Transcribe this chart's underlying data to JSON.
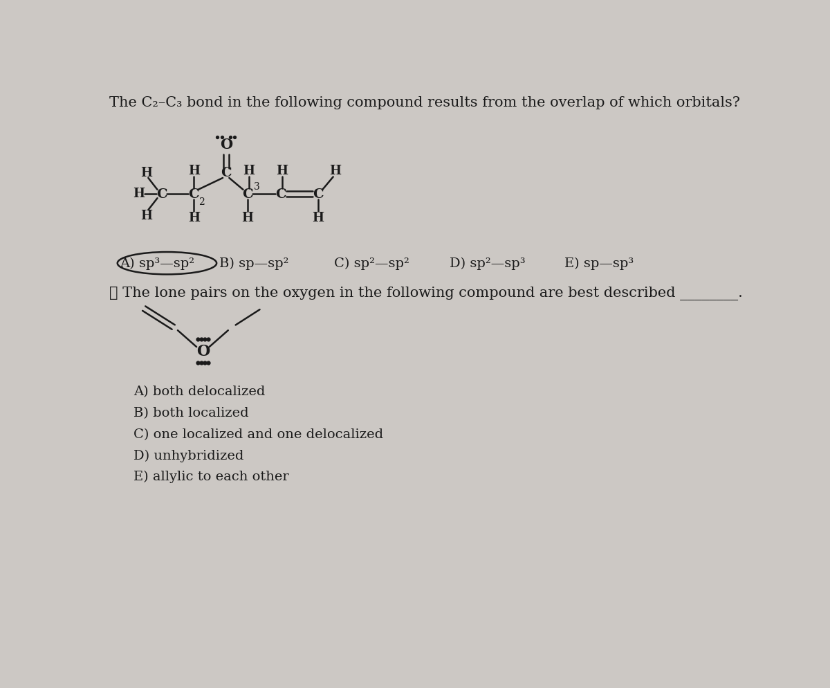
{
  "bg_color": "#ccc8c4",
  "text_color": "#1a1a1a",
  "title_q1": "The C₂–C₃ bond in the following compound results from the overlap of which orbitals?",
  "title_q2": "The lone pairs on the oxygen in the following compound are best described ________.",
  "q1_options": [
    {
      "label": "A) sp³—sp²",
      "circled": true
    },
    {
      "label": "B) sp—sp²",
      "circled": false
    },
    {
      "label": "C) sp²—sp²",
      "circled": false
    },
    {
      "label": "D) sp²—sp³",
      "circled": false
    },
    {
      "label": "E) sp—sp³",
      "circled": false
    }
  ],
  "q2_options": [
    "A) both delocalized",
    "B) both localized",
    "C) one localized and one delocalized",
    "D) unhybridized",
    "E) allylic to each other"
  ],
  "font_size_title": 15,
  "font_size_options": 14,
  "font_size_struct": 13,
  "font_size_small": 10
}
